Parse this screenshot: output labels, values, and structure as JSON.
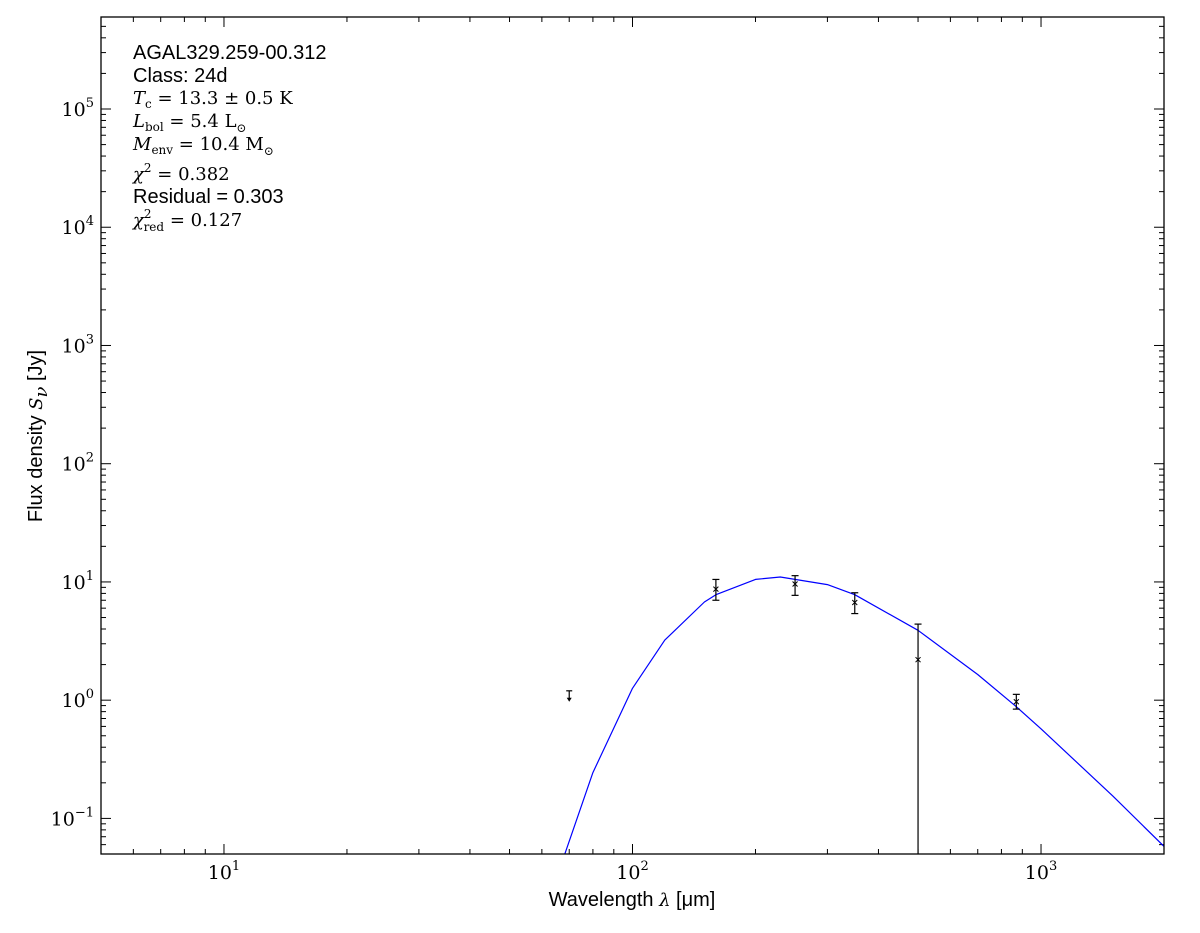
{
  "chart_data": {
    "type": "scatter",
    "xscale": "log",
    "yscale": "log",
    "xlim": [
      5,
      2000
    ],
    "ylim": [
      0.05,
      600000
    ],
    "grid": false,
    "xlabel": "Wavelength λ [μm]",
    "ylabel": "Flux density S_ν [Jy]",
    "xlabel_parts": {
      "pre": "Wavelength ",
      "sym": "λ",
      "post": " [μm]"
    },
    "ylabel_parts": {
      "pre": "Flux density ",
      "sym": "S",
      "sub": "ν",
      "post": " [Jy]"
    },
    "xticks": [
      {
        "base": "10",
        "exp": "1",
        "value": 10
      },
      {
        "base": "10",
        "exp": "2",
        "value": 100
      },
      {
        "base": "10",
        "exp": "3",
        "value": 1000
      }
    ],
    "yticks": [
      {
        "base": "10",
        "exp": "−1",
        "value": 0.1
      },
      {
        "base": "10",
        "exp": "0",
        "value": 1
      },
      {
        "base": "10",
        "exp": "1",
        "value": 10
      },
      {
        "base": "10",
        "exp": "2",
        "value": 100
      },
      {
        "base": "10",
        "exp": "3",
        "value": 1000
      },
      {
        "base": "10",
        "exp": "4",
        "value": 10000
      },
      {
        "base": "10",
        "exp": "5",
        "value": 100000
      }
    ],
    "points": [
      {
        "x": 70,
        "y": 1.2,
        "upper_limit": true
      },
      {
        "x": 160,
        "y": 8.7,
        "err_low": 7.0,
        "err_high": 10.5
      },
      {
        "x": 250,
        "y": 9.6,
        "err_low": 7.7,
        "err_high": 11.3
      },
      {
        "x": 350,
        "y": 6.7,
        "err_low": 5.4,
        "err_high": 8.1
      },
      {
        "x": 500,
        "y": 2.2,
        "err_low": 0.0,
        "err_high": 4.4
      },
      {
        "x": 870,
        "y": 0.97,
        "err_low": 0.84,
        "err_high": 1.12
      }
    ],
    "model_curve": {
      "color": "#0000ff",
      "x": [
        68,
        80,
        100,
        120,
        150,
        160,
        200,
        230,
        300,
        350,
        500,
        700,
        870,
        1000,
        1500,
        2000
      ],
      "y": [
        0.048,
        0.244,
        1.26,
        3.22,
        6.77,
        7.8,
        10.5,
        11.0,
        9.5,
        7.8,
        3.9,
        1.65,
        0.88,
        0.573,
        0.154,
        0.058
      ]
    },
    "annotations": {
      "source": "AGAL329.259-00.312",
      "class": "Class: 24d",
      "tc": {
        "sym": "T",
        "sub": "c",
        "val": " = 13.3 ± 0.5 K"
      },
      "lbol": {
        "sym": "L",
        "sub": "bol",
        "val": " = 5.4 L",
        "unit_sub": "⊙"
      },
      "menv": {
        "sym": "M",
        "sub": "env",
        "val": " = 10.4 M",
        "unit_sub": "⊙"
      },
      "chi2": {
        "sym": "χ",
        "sup": "2",
        "val": " = 0.382"
      },
      "residual": "Residual = 0.303",
      "chi2red": {
        "sym": "χ",
        "sup": "2",
        "sub": "red",
        "val": " = 0.127"
      }
    }
  }
}
